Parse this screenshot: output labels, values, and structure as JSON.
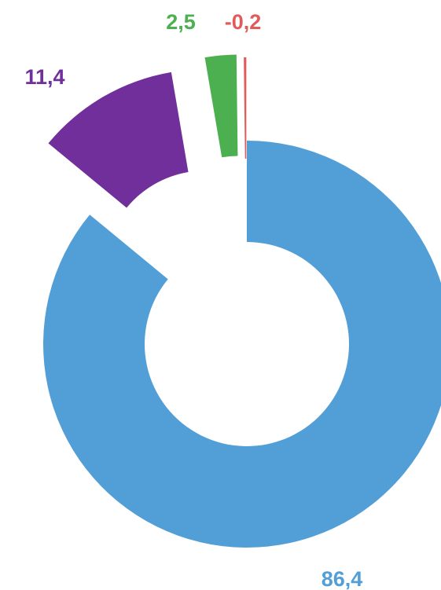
{
  "chart_data": {
    "type": "donut",
    "categories": [
      "86,4",
      "11,4",
      "2,5",
      "-0,2"
    ],
    "values": [
      86.4,
      11.4,
      2.5,
      -0.2
    ],
    "labels": [
      "86,4",
      "11,4",
      "2,5",
      "-0,2"
    ],
    "colors": [
      "#519fd6",
      "#702f9a",
      "#4caf50",
      "#e25b5b"
    ],
    "title": "",
    "xlabel": "",
    "ylabel": "",
    "legend": "none",
    "exploded": true
  }
}
